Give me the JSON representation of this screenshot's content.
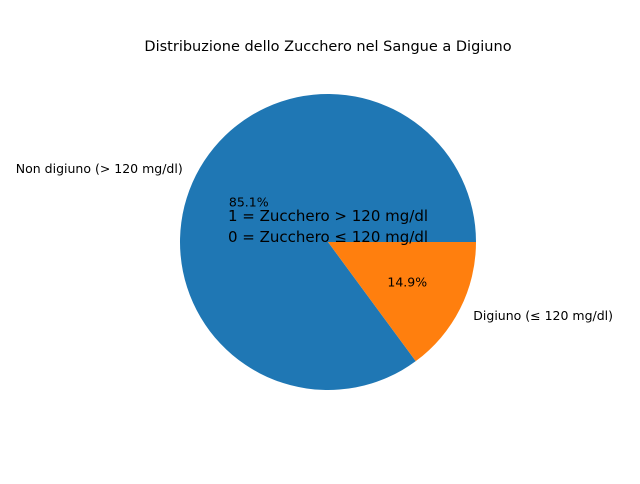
{
  "chart_data": {
    "type": "pie",
    "title": "Distribuzione dello Zucchero nel Sangue a Digiuno",
    "slices": [
      {
        "label": "Non digiuno (> 120 mg/dl)",
        "value": 85.1,
        "pct_label": "85.1%",
        "color": "#1f77b4"
      },
      {
        "label": "Digiuno (≤ 120 mg/dl)",
        "value": 14.9,
        "pct_label": "14.9%",
        "color": "#ff7f0e"
      }
    ],
    "annotation": {
      "line1": "1 = Zucchero > 120 mg/dl",
      "line2": "0 = Zucchero ≤ 120 mg/dl"
    },
    "start_angle_deg": 0,
    "direction": "counterclockwise"
  }
}
